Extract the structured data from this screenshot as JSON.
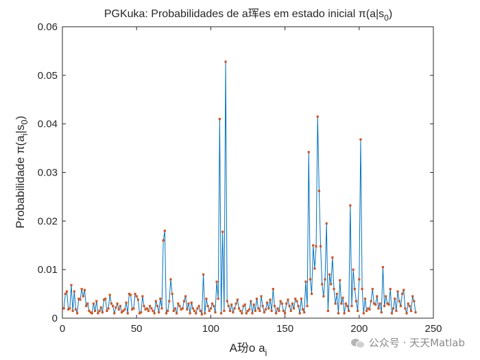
{
  "chart_data": {
    "type": "line",
    "title": "PGKuka: Probabilidades de a珲es em estado inicial π(a|s0)",
    "title_main": "PGKuka: Probabilidades de a珲es em estado inicial π(a|s",
    "title_sub": "0",
    "title_close": ")",
    "xlabel": "A玢o a",
    "xlabel_sub": "i",
    "ylabel": "Probabilidade π(a|s0)",
    "ylabel_main": "Probabilidade π(a",
    "ylabel_sub_i": "i",
    "ylabel_mid": "|s",
    "ylabel_sub_0": "0",
    "ylabel_close": ")",
    "xlim": [
      0,
      250
    ],
    "ylim": [
      0,
      0.06
    ],
    "xticks": [
      0,
      50,
      100,
      150,
      200,
      250
    ],
    "yticks": [
      0,
      0.01,
      0.02,
      0.03,
      0.04,
      0.05,
      0.06
    ],
    "ytick_labels": [
      "0",
      "0.01",
      "0.02",
      "0.03",
      "0.04",
      "0.05",
      "0.06"
    ],
    "grid": false,
    "line_color": "#0072BD",
    "marker_color": "#D95319",
    "x_start": 1,
    "values": [
      0.002,
      0.005,
      0.0055,
      0.0018,
      0.002,
      0.0068,
      0.0015,
      0.0055,
      0.0018,
      0.001,
      0.004,
      0.0038,
      0.006,
      0.0045,
      0.0058,
      0.0025,
      0.003,
      0.0015,
      0.0012,
      0.001,
      0.003,
      0.0015,
      0.0035,
      0.001,
      0.0015,
      0.0022,
      0.0012,
      0.0038,
      0.004,
      0.0015,
      0.002,
      0.0048,
      0.003,
      0.0025,
      0.001,
      0.0022,
      0.003,
      0.0018,
      0.0025,
      0.0012,
      0.0015,
      0.0018,
      0.0032,
      0.001,
      0.005,
      0.0048,
      0.0018,
      0.002,
      0.005,
      0.0045,
      0.0038,
      0.001,
      0.0012,
      0.0045,
      0.0025,
      0.0018,
      0.002,
      0.0015,
      0.0025,
      0.002,
      0.0015,
      0.001,
      0.0035,
      0.0025,
      0.0012,
      0.004,
      0.002,
      0.016,
      0.018,
      0.001,
      0.0015,
      0.0035,
      0.008,
      0.005,
      0.0015,
      0.002,
      0.001,
      0.003,
      0.0025,
      0.0018,
      0.002,
      0.0035,
      0.0045,
      0.0018,
      0.003,
      0.001,
      0.0032,
      0.002,
      0.0015,
      0.001,
      0.002,
      0.0025,
      0.0015,
      0.0008,
      0.009,
      0.001,
      0.004,
      0.0025,
      0.0015,
      0.002,
      0.003,
      0.0025,
      0.0012,
      0.0075,
      0.004,
      0.041,
      0.001,
      0.0178,
      0.0015,
      0.0528,
      0.0035,
      0.0025,
      0.0015,
      0.0028,
      0.0012,
      0.002,
      0.003,
      0.0038,
      0.002,
      0.0015,
      0.001,
      0.0025,
      0.0028,
      0.001,
      0.0015,
      0.0018,
      0.0035,
      0.001,
      0.0028,
      0.0015,
      0.004,
      0.002,
      0.0015,
      0.0045,
      0.0025,
      0.0012,
      0.0018,
      0.0032,
      0.002,
      0.0038,
      0.0015,
      0.006,
      0.0025,
      0.001,
      0.002,
      0.0015,
      0.0035,
      0.003,
      0.0015,
      0.001,
      0.003,
      0.0038,
      0.0025,
      0.0015,
      0.003,
      0.002,
      0.004,
      0.0035,
      0.0025,
      0.001,
      0.004,
      0.0018,
      0.0012,
      0.0075,
      0.0025,
      0.0342,
      0.008,
      0.005,
      0.015,
      0.0102,
      0.0148,
      0.0415,
      0.0262,
      0.0148,
      0.007,
      0.0045,
      0.008,
      0.0195,
      0.0015,
      0.009,
      0.007,
      0.0125,
      0.006,
      0.003,
      0.005,
      0.001,
      0.0078,
      0.003,
      0.0042,
      0.001,
      0.003,
      0.0025,
      0.0015,
      0.0232,
      0.0025,
      0.01,
      0.006,
      0.0035,
      0.0015,
      0.008,
      0.0368,
      0.006,
      0.001,
      0.004,
      0.0015,
      0.002,
      0.0018,
      0.0035,
      0.006,
      0.003,
      0.0028,
      0.0045,
      0.002,
      0.003,
      0.0012,
      0.0105,
      0.0025,
      0.0045,
      0.003,
      0.0028,
      0.006,
      0.001,
      0.002,
      0.004,
      0.0015,
      0.0055,
      0.0035,
      0.0025,
      0.005,
      0.0058,
      0.002,
      0.001,
      0.003,
      0.0025,
      0.0015,
      0.0045,
      0.0035,
      0.0012
    ]
  },
  "watermark": {
    "text": "公众号 · 天天Matlab",
    "icon": "wechat-icon"
  }
}
